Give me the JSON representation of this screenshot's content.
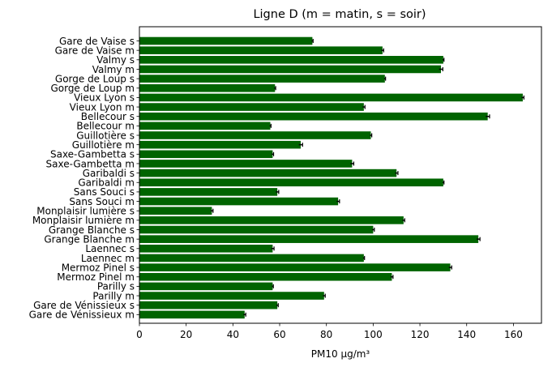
{
  "chart_data": {
    "type": "bar",
    "orientation": "horizontal",
    "title": "Ligne D (m = matin, s = soir)",
    "xlabel": "PM10 µg/m³",
    "ylabel": "",
    "xlim": [
      0,
      172
    ],
    "xticks": [
      0,
      20,
      40,
      60,
      80,
      100,
      120,
      140,
      160
    ],
    "grid": false,
    "legend": "none",
    "bar_color": "#006400",
    "error_color": "#000000",
    "categories": [
      "Gare de Vaise s",
      "Gare de Vaise m",
      "Valmy s",
      "Valmy m",
      "Gorge de Loup s",
      "Gorge de Loup m",
      "Vieux Lyon s",
      "Vieux Lyon m",
      "Bellecour s",
      "Bellecour m",
      "Guillotière s",
      "Guillotière m",
      "Saxe-Gambetta s",
      "Saxe-Gambetta m",
      "Garibaldi s",
      "Garibaldi m",
      "Sans Souci s",
      "Sans Souci m",
      "Monplaisir lumière s",
      "Monplaisir lumière m",
      "Grange Blanche s",
      "Grange Blanche m",
      "Laennec s",
      "Laennec m",
      "Mermoz Pinel s",
      "Mermoz Pinel m",
      "Parilly s",
      "Parilly m",
      "Gare de Vénissieux s",
      "Gare de Vénissieux m"
    ],
    "values": [
      74,
      104,
      130,
      129,
      105,
      58,
      164,
      96,
      149,
      56,
      99,
      69,
      57,
      91,
      110,
      130,
      59,
      85,
      31,
      113,
      100,
      145,
      57,
      96,
      133,
      108,
      57,
      79,
      59,
      45
    ],
    "errors": [
      0.3,
      0.5,
      0.3,
      0.8,
      0.3,
      0.3,
      0.5,
      0.5,
      0.8,
      0.3,
      0.4,
      0.8,
      0.4,
      0.7,
      0.6,
      0.3,
      0.6,
      0.6,
      0.5,
      0.5,
      0.5,
      0.7,
      0.6,
      0.3,
      0.6,
      0.5,
      0.3,
      0.5,
      0.4,
      0.5
    ]
  }
}
